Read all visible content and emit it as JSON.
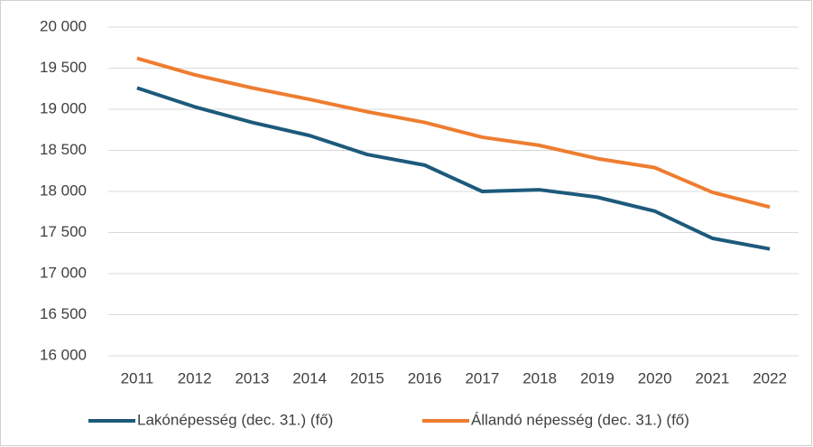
{
  "chart_data": {
    "type": "line",
    "categories": [
      "2011",
      "2012",
      "2013",
      "2014",
      "2015",
      "2016",
      "2017",
      "2018",
      "2019",
      "2020",
      "2021",
      "2022"
    ],
    "series": [
      {
        "name": "Lakónépesség (dec. 31.) (fő)",
        "color": "#1d5a7b",
        "values": [
          19260,
          19030,
          18840,
          18680,
          18450,
          18320,
          18000,
          18020,
          17930,
          17760,
          17430,
          17300
        ]
      },
      {
        "name": "Állandó népesség (dec. 31.) (fő)",
        "color": "#ee7d31",
        "values": [
          19620,
          19420,
          19260,
          19120,
          18970,
          18840,
          18660,
          18560,
          18400,
          18290,
          17990,
          17810
        ]
      }
    ],
    "ylim": [
      16000,
      20000
    ],
    "yticks": [
      {
        "value": 16000,
        "label": "16 000"
      },
      {
        "value": 16500,
        "label": "16 500"
      },
      {
        "value": 17000,
        "label": "17 000"
      },
      {
        "value": 17500,
        "label": "17 500"
      },
      {
        "value": 18000,
        "label": "18 000"
      },
      {
        "value": 18500,
        "label": "18 500"
      },
      {
        "value": 19000,
        "label": "19 000"
      },
      {
        "value": 19500,
        "label": "19 500"
      },
      {
        "value": 20000,
        "label": "20 000"
      }
    ],
    "grid": true,
    "legend": "bottom"
  }
}
